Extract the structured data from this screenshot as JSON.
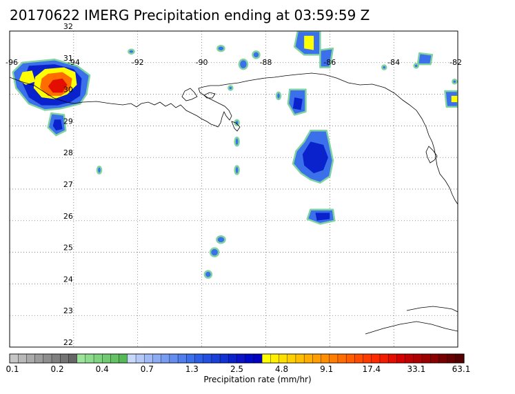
{
  "title": "20170622 IMERG Precipitation ending at 03:59:59 Z",
  "map": {
    "lon_labels": [
      "-96",
      "-94",
      "-92",
      "-90",
      "-88",
      "-86",
      "-84",
      "-82"
    ],
    "lat_labels": [
      "32",
      "31",
      "30",
      "29",
      "28",
      "27",
      "26",
      "25",
      "24",
      "23",
      "22"
    ],
    "lon_range": [
      -96,
      -82
    ],
    "lat_range": [
      22,
      32
    ],
    "gridlines": "dotted",
    "coastline_color": "#000000"
  },
  "colorbar": {
    "label": "Precipitation rate (mm/hr)",
    "tick_labels": [
      "0.1",
      "0.2",
      "0.4",
      "0.7",
      "1.3",
      "2.5",
      "4.8",
      "9.1",
      "17.4",
      "33.1",
      "63.1"
    ],
    "colors": [
      "#c6c6c6",
      "#b8b8b8",
      "#aaaaaa",
      "#9c9c9c",
      "#8e8e8e",
      "#808080",
      "#737373",
      "#666666",
      "#9be59b",
      "#8ddc8d",
      "#7fd37f",
      "#72ca72",
      "#64c164",
      "#57b857",
      "#c8d8fa",
      "#b4c9f8",
      "#a0baf6",
      "#8cabf3",
      "#789cf0",
      "#648def",
      "#507eec",
      "#3c6fea",
      "#2d5ee6",
      "#244fe0",
      "#1a40da",
      "#1032d4",
      "#0a22cc",
      "#0b12c8",
      "#0008c8",
      "#0000c0",
      "#ffff00",
      "#ffef00",
      "#ffdf00",
      "#ffcf00",
      "#ffbf00",
      "#ffae00",
      "#ff9e00",
      "#ff8e00",
      "#ff7d00",
      "#ff6d00",
      "#ff5d00",
      "#ff4c00",
      "#ff3c00",
      "#ff2b00",
      "#f41c00",
      "#e40e00",
      "#d40000",
      "#c00000",
      "#ae0000",
      "#9a0000",
      "#880000",
      "#760000",
      "#640000",
      "#520000"
    ]
  },
  "precip_colors": {
    "edge": "#7fd3a0",
    "light": "#3c6fea",
    "moderate": "#0a22cc",
    "heavy": "#ffff00",
    "intense": "#ff6d00",
    "extreme": "#e40e00"
  }
}
